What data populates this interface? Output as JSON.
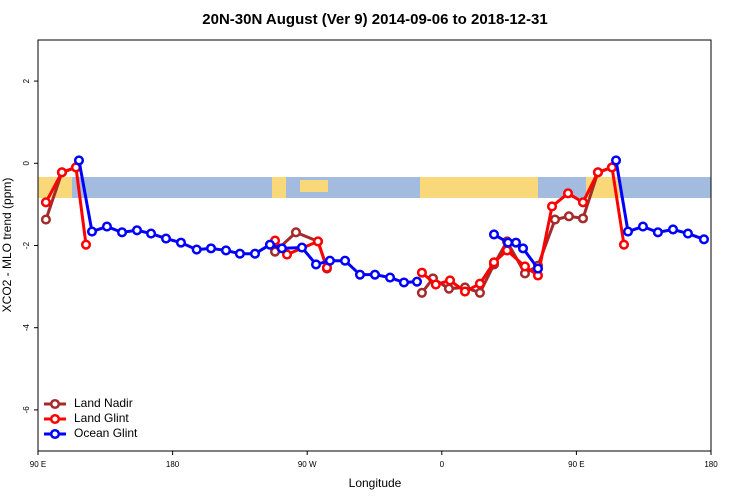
{
  "chart_data": {
    "type": "line",
    "title": "20N-30N August (Ver 9)   2014-09-06 to 2018-12-31",
    "x_label": "Longitude",
    "y_label": "XCO2 - MLO trend (ppm)",
    "xlim": [
      90,
      540
    ],
    "xticks": [
      {
        "value": 90,
        "label": "90 E"
      },
      {
        "value": 180,
        "label": "180"
      },
      {
        "value": 270,
        "label": "90 W"
      },
      {
        "value": 360,
        "label": "0"
      },
      {
        "value": 450,
        "label": "90 E"
      },
      {
        "value": 540,
        "label": "180"
      }
    ],
    "ylim": [
      -7,
      3
    ],
    "yticks": [
      2,
      0,
      -2,
      -4,
      -6
    ],
    "legend": "bottom-left",
    "series": [
      {
        "name": "Land Nadir",
        "color": "#a52a2a",
        "x": [
          95.3,
          106,
          115.4,
          null,
          248.5,
          262.5,
          277.2,
          283.2,
          null,
          346.7,
          354.1,
          364.8,
          375.5,
          385.5,
          394.9,
          403.6,
          415.6,
          424.3,
          435.7,
          445,
          454.4,
          464.4,
          473.8
        ],
        "values": [
          -1.37,
          -0.22,
          -0.1,
          null,
          -2.15,
          -1.68,
          -1.9,
          -2.56,
          null,
          -3.15,
          -2.8,
          -3.05,
          -3.02,
          -3.15,
          -2.46,
          -1.9,
          -2.68,
          -2.49,
          -1.37,
          -1.29,
          -1.34,
          -0.22,
          -0.1
        ]
      },
      {
        "name": "Land Glint",
        "color": "#ff0000",
        "x": [
          95.3,
          106,
          115.4,
          122.1,
          null,
          248.5,
          256.5,
          277.2,
          283.2,
          null,
          346.7,
          356,
          365.5,
          375.5,
          385.5,
          394.9,
          403.6,
          415.6,
          424.3,
          433.7,
          444.4,
          454.4,
          464.4,
          473.8,
          481.8
        ],
        "values": [
          -0.95,
          -0.22,
          -0.1,
          -1.98,
          null,
          -1.88,
          -2.22,
          -1.9,
          -2.54,
          null,
          -2.66,
          -2.95,
          -2.85,
          -3.12,
          -2.93,
          -2.41,
          -2.12,
          -2.51,
          -2.73,
          -1.05,
          -0.73,
          -0.95,
          -0.22,
          -0.1,
          -1.98
        ]
      },
      {
        "name": "Ocean Glint",
        "color": "#0000ff",
        "x": [
          117.4,
          126.1,
          136.1,
          146.2,
          156.2,
          165.6,
          175.6,
          185.6,
          196.1,
          205.7,
          215.7,
          225,
          235.1,
          245.1,
          253.1,
          266.5,
          275.9,
          285.2,
          295.3,
          305.3,
          315.3,
          325.4,
          334.7,
          343.4,
          null,
          394.9,
          404.3,
          409.6,
          414.3,
          424.3,
          null,
          476.5,
          484.5,
          494.5,
          504.5,
          514.6,
          524.6,
          535.3
        ],
        "values": [
          0.07,
          -1.66,
          -1.54,
          -1.68,
          -1.63,
          -1.71,
          -1.83,
          -1.93,
          -2.1,
          -2.07,
          -2.12,
          -2.2,
          -2.2,
          -1.98,
          -2.07,
          -2.05,
          -2.46,
          -2.37,
          -2.37,
          -2.71,
          -2.71,
          -2.78,
          -2.9,
          -2.88,
          null,
          -1.73,
          -1.93,
          -1.93,
          -2.07,
          -2.56,
          null,
          0.07,
          -1.66,
          -1.54,
          -1.68,
          -1.61,
          -1.71,
          -1.85
        ]
      }
    ]
  }
}
